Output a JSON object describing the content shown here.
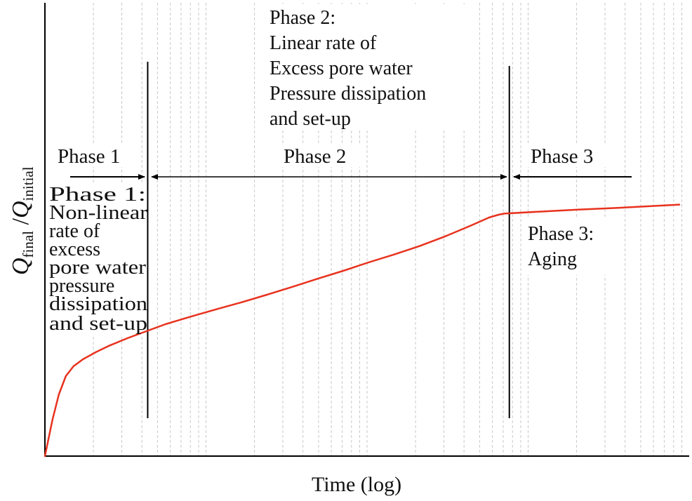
{
  "chart_data": {
    "type": "line",
    "xlabel": "Time (log)",
    "ylabel": {
      "q1": "Q",
      "sub1": "final",
      "slash": " /",
      "q2": "Q",
      "sub2": "initial"
    },
    "x_scale": "log",
    "x_range": [
      0,
      1
    ],
    "y_range": [
      0,
      1
    ],
    "grid": {
      "vertical": true,
      "horizontal": false,
      "style": "dashed"
    },
    "series": [
      {
        "name": "Qfinal/Qinitial",
        "color": "#e8321e",
        "x": [
          0.0,
          0.012,
          0.022,
          0.033,
          0.045,
          0.06,
          0.08,
          0.1,
          0.13,
          0.16,
          0.19,
          0.23,
          0.27,
          0.31,
          0.35,
          0.39,
          0.43,
          0.47,
          0.51,
          0.55,
          0.59,
          0.63,
          0.67,
          0.7,
          0.715,
          0.724,
          0.78,
          0.84,
          0.9,
          0.95,
          1.0
        ],
        "y": [
          0.0,
          0.13,
          0.22,
          0.285,
          0.32,
          0.345,
          0.37,
          0.392,
          0.42,
          0.445,
          0.47,
          0.497,
          0.523,
          0.548,
          0.575,
          0.603,
          0.632,
          0.66,
          0.69,
          0.718,
          0.748,
          0.782,
          0.82,
          0.85,
          0.86,
          0.864,
          0.871,
          0.878,
          0.884,
          0.89,
          0.896
        ]
      }
    ],
    "phase_boundaries": [
      0.162,
      0.732
    ],
    "phase_labels": [
      "Phase 1",
      "Phase 2",
      "Phase 3"
    ],
    "annotations": {
      "phase1": [
        "Phase 1:",
        "Non-linear",
        "rate of",
        "excess",
        "pore water",
        "pressure",
        "dissipation",
        "and set-up"
      ],
      "phase2": [
        "Phase 2:",
        "Linear rate of",
        "Excess pore water",
        "Pressure dissipation",
        "and set-up"
      ],
      "phase3": [
        "Phase 3:",
        "Aging"
      ]
    }
  }
}
